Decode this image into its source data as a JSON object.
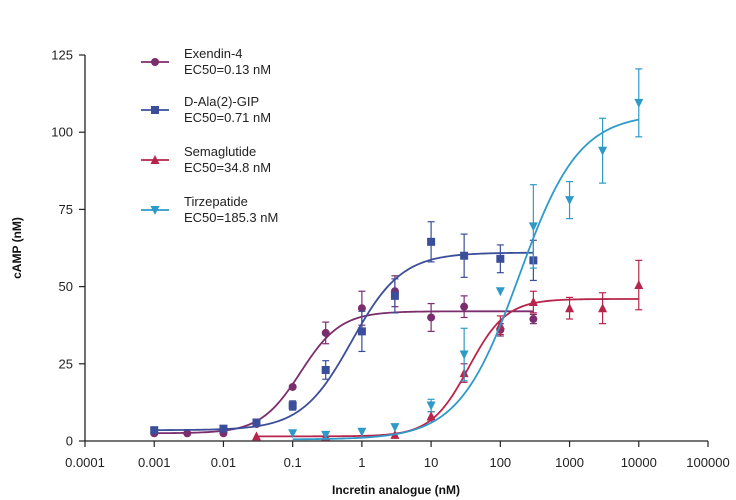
{
  "chart_data": {
    "type": "scatter",
    "title": "",
    "xlabel": "Incretin analogue (nM)",
    "ylabel": "cAMP (nM)",
    "xscale": "log",
    "xlim": [
      0.0001,
      100000
    ],
    "ylim": [
      0,
      125
    ],
    "x_ticks": [
      0.0001,
      0.001,
      0.01,
      0.1,
      1,
      10,
      100,
      1000,
      10000,
      100000
    ],
    "x_tick_labels": [
      "0.0001",
      "0.001",
      "0.01",
      "0.1",
      "1",
      "10",
      "100",
      "1000",
      "10000",
      "100000"
    ],
    "y_ticks": [
      0,
      25,
      50,
      75,
      100,
      125
    ],
    "y_tick_labels": [
      "0",
      "25",
      "50",
      "75",
      "100",
      "125"
    ],
    "grid": false,
    "legend_position": "top-left",
    "series": [
      {
        "name": "Exendin-4",
        "ec50_label": "EC50=0.13 nM",
        "color": "#7b2d6e",
        "marker": "circle",
        "x": [
          0.001,
          0.003,
          0.01,
          0.03,
          0.1,
          0.3,
          1,
          3,
          10,
          30,
          100,
          300
        ],
        "y": [
          2.5,
          2.5,
          2.5,
          5.5,
          17.5,
          35,
          43,
          48.5,
          40,
          43.5,
          36,
          39.5
        ],
        "err": [
          0,
          0,
          0,
          0,
          0,
          3.5,
          5.5,
          5,
          4.5,
          3.5,
          2,
          1.5
        ],
        "fit": {
          "bottom": 2.5,
          "top": 42,
          "ec50": 0.13,
          "hill": 1.5
        }
      },
      {
        "name": "D-Ala(2)-GIP",
        "ec50_label": "EC50=0.71 nM",
        "color": "#3b4e9b",
        "marker": "square",
        "x": [
          0.001,
          0.01,
          0.03,
          0.1,
          0.3,
          1,
          3,
          10,
          30,
          100,
          300
        ],
        "y": [
          3.5,
          4,
          6,
          11.5,
          23,
          35.5,
          47,
          64.5,
          60,
          59,
          58.5
        ],
        "err": [
          0,
          0,
          0,
          1.5,
          3,
          6.5,
          5.5,
          6.5,
          7,
          4.5,
          6.5
        ],
        "fit": {
          "bottom": 3.5,
          "top": 61,
          "ec50": 0.71,
          "hill": 1.2
        }
      },
      {
        "name": "Semaglutide",
        "ec50_label": "EC50=34.8 nM",
        "color": "#b8254c",
        "marker": "triangle-up",
        "x": [
          0.03,
          0.3,
          3,
          10,
          30,
          100,
          300,
          1000,
          3000,
          10000
        ],
        "y": [
          1.5,
          1.5,
          2,
          8,
          22,
          37.5,
          45,
          43,
          43,
          50.5
        ],
        "err": [
          0,
          0,
          0,
          1.5,
          3,
          3,
          3.5,
          3.5,
          5,
          8
        ],
        "fit": {
          "bottom": 1.5,
          "top": 46,
          "ec50": 34.8,
          "hill": 1.6
        }
      },
      {
        "name": "Tirzepatide",
        "ec50_label": "EC50=185.3 nM",
        "color": "#2f9ac8",
        "marker": "triangle-down",
        "x": [
          0.1,
          0.3,
          1,
          3,
          10,
          30,
          100,
          300,
          1000,
          3000,
          10000
        ],
        "y": [
          2.5,
          2,
          3,
          4.5,
          11.5,
          28,
          48.5,
          69.5,
          78,
          94,
          109.5
        ],
        "err": [
          0,
          0,
          0,
          0,
          2,
          8.5,
          0,
          13.5,
          6,
          10.5,
          11
        ],
        "fit": {
          "bottom": 0.5,
          "top": 106,
          "ec50": 185.3,
          "hill": 1.0
        }
      }
    ]
  }
}
